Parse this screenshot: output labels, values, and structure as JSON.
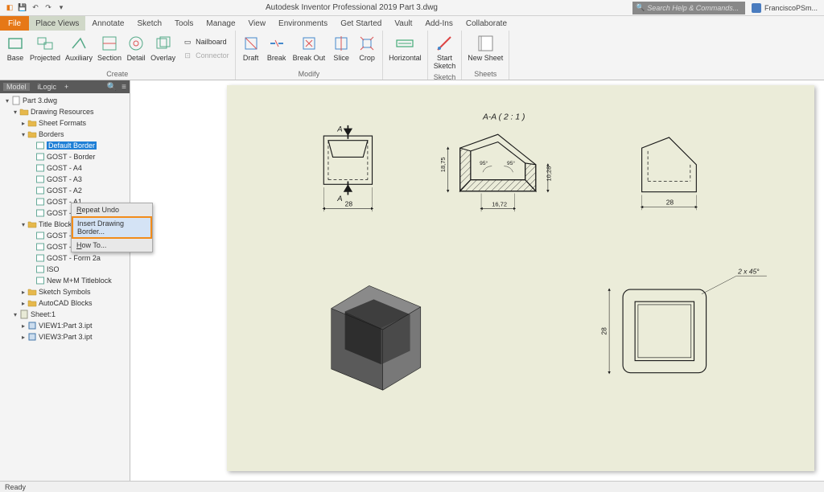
{
  "title": "Autodesk Inventor Professional 2019  Part 3.dwg",
  "search_placeholder": "Search Help & Commands...",
  "user": "FranciscoPSm...",
  "file_tab": "File",
  "tabs": [
    "Place Views",
    "Annotate",
    "Sketch",
    "Tools",
    "Manage",
    "View",
    "Environments",
    "Get Started",
    "Vault",
    "Add-Ins",
    "Collaborate"
  ],
  "active_tab": 0,
  "ribbon": {
    "create": {
      "label": "Create",
      "btns": [
        "Base",
        "Projected",
        "Auxiliary",
        "Section",
        "Detail",
        "Overlay"
      ],
      "small": [
        "Nailboard",
        "Connector"
      ]
    },
    "modify": {
      "label": "Modify",
      "btns": [
        "Draft",
        "Break",
        "Break Out",
        "Slice",
        "Crop"
      ]
    },
    "g3": {
      "btns": [
        "Horizontal",
        "Start\nSketch",
        "New Sheet"
      ]
    },
    "sketch_label": "Sketch",
    "sheets_label": "Sheets"
  },
  "panel": {
    "tabs": [
      "Model",
      "iLogic"
    ],
    "active": 0,
    "root": "Part 3.dwg"
  },
  "tree": [
    {
      "lvl": 0,
      "tw": "▾",
      "ic": "doc",
      "t": "Part 3.dwg"
    },
    {
      "lvl": 1,
      "tw": "▾",
      "ic": "fld",
      "t": "Drawing Resources"
    },
    {
      "lvl": 2,
      "tw": "▸",
      "ic": "fld",
      "t": "Sheet Formats"
    },
    {
      "lvl": 2,
      "tw": "▾",
      "ic": "fld",
      "t": "Borders"
    },
    {
      "lvl": 3,
      "tw": "",
      "ic": "bdr",
      "t": "Default Border",
      "sel": true
    },
    {
      "lvl": 3,
      "tw": "",
      "ic": "bdr",
      "t": "GOST - Border"
    },
    {
      "lvl": 3,
      "tw": "",
      "ic": "bdr",
      "t": "GOST - A4"
    },
    {
      "lvl": 3,
      "tw": "",
      "ic": "bdr",
      "t": "GOST - A3"
    },
    {
      "lvl": 3,
      "tw": "",
      "ic": "bdr",
      "t": "GOST - A2"
    },
    {
      "lvl": 3,
      "tw": "",
      "ic": "bdr",
      "t": "GOST - A1"
    },
    {
      "lvl": 3,
      "tw": "",
      "ic": "bdr",
      "t": "GOST - A0"
    },
    {
      "lvl": 2,
      "tw": "▾",
      "ic": "fld",
      "t": "Title Blocks"
    },
    {
      "lvl": 3,
      "tw": "",
      "ic": "bdr",
      "t": "GOST - Form 1"
    },
    {
      "lvl": 3,
      "tw": "",
      "ic": "bdr",
      "t": "GOST - Form 2"
    },
    {
      "lvl": 3,
      "tw": "",
      "ic": "bdr",
      "t": "GOST - Form 2a"
    },
    {
      "lvl": 3,
      "tw": "",
      "ic": "bdr",
      "t": "ISO"
    },
    {
      "lvl": 3,
      "tw": "",
      "ic": "bdr",
      "t": "New M+M Titleblock"
    },
    {
      "lvl": 2,
      "tw": "▸",
      "ic": "fld",
      "t": "Sketch Symbols"
    },
    {
      "lvl": 2,
      "tw": "▸",
      "ic": "fld",
      "t": "AutoCAD Blocks"
    },
    {
      "lvl": 1,
      "tw": "▾",
      "ic": "sht",
      "t": "Sheet:1"
    },
    {
      "lvl": 2,
      "tw": "▸",
      "ic": "vw",
      "t": "VIEW1:Part 3.ipt"
    },
    {
      "lvl": 2,
      "tw": "▸",
      "ic": "vw",
      "t": "VIEW3:Part 3.ipt"
    }
  ],
  "context": {
    "items": [
      "Repeat Undo",
      "Insert Drawing Border...",
      "How To..."
    ],
    "hl": 1
  },
  "drawing": {
    "section_label": "A-A ( 2 : 1 )",
    "dims": {
      "top_w": "28",
      "sec_h": "18,75",
      "sec_r": "10,28",
      "sec_w": "16,72",
      "right_w": "28",
      "sq_h": "28",
      "chamfer": "2 x 45°"
    },
    "angles": [
      "95°",
      "95°"
    ],
    "arrow": "A",
    "colors": {
      "line": "#1a1a1a",
      "hatch": "#1a1a1a",
      "bg": "#ebecd9"
    }
  },
  "status": "Ready"
}
